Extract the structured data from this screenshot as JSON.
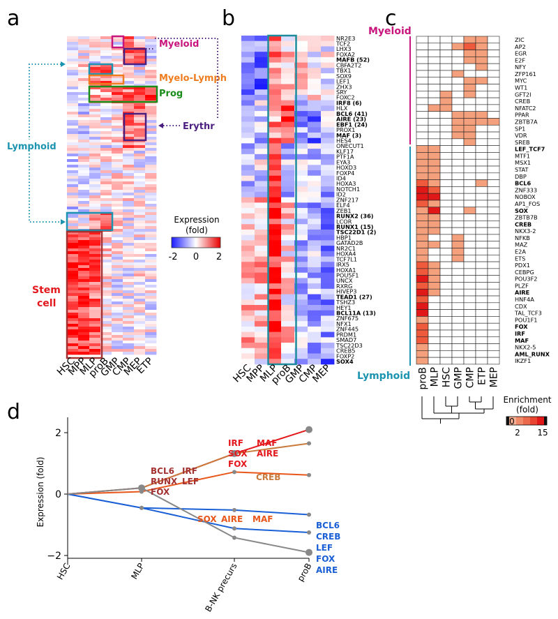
{
  "panels": {
    "a": {
      "letter": "a",
      "cell_types": [
        "HSC",
        "MPP",
        "MLP",
        "proB",
        "GMP",
        "CMP",
        "MEP",
        "ETP"
      ],
      "cluster_labels": {
        "myeloid": "Myeloid",
        "myelo_lymph": "Myelo-Lymph",
        "prog": "Prog",
        "erythr": "Erythr",
        "lymphoid": "Lymphoid",
        "stem_line1": "Stem",
        "stem_line2": "cell"
      },
      "legend": {
        "title_line1": "Expression",
        "title_line2": "(fold)",
        "ticks": [
          "-2",
          "0",
          "2"
        ]
      }
    },
    "b": {
      "letter": "b",
      "cell_types": [
        "HSC",
        "MPP",
        "MLP",
        "proB",
        "GMP",
        "CMP",
        "MEP"
      ],
      "genes": [
        "NR2E3",
        "TCF2",
        "LHX3",
        "FOXA2",
        "MAFB (52)",
        "CBFA2T2",
        "TBX1",
        "SOX9",
        "LEF1",
        "ZHX3",
        "SRY",
        "FOXC2",
        "IRF8 (6)",
        "HLX",
        "BCL6 (41)",
        "AIRE (23)",
        "EBF1 (24)",
        "PROX1",
        "MAF (3)",
        "HES4",
        "ONECUT1",
        "KLF17",
        "PTF1A",
        "EYA3",
        "HOXD3",
        "FOXP4",
        "ID4",
        "HOXA3",
        "NOTCH1",
        "ID2",
        "ZNF217",
        "ELF4",
        "ZEB1",
        "RUNX2 (36)",
        "LCOR",
        "RUNX1 (15)",
        "TSC22D1 (2)",
        "HBP1",
        "GATAD2B",
        "NR2C1",
        "HOXA4",
        "TCF7L1",
        "IRX5",
        "HOXA1",
        "POU5F1",
        "UNCX",
        "RXRG",
        "HIVEP3",
        "TEAD1 (27)",
        "TSHZ3",
        "HEY1",
        "BCL11A (13)",
        "ZNF675",
        "NFX1",
        "ZNF445",
        "PRDM1",
        "SMAD7",
        "TSC22D3",
        "CREB5",
        "FOXP2",
        "SOX4"
      ],
      "bold_genes": [
        "MAFB (52)",
        "IRF8 (6)",
        "BCL6 (41)",
        "AIRE (23)",
        "EBF1 (24)",
        "MAF (3)",
        "RUNX2 (36)",
        "RUNX1 (15)",
        "TSC22D1 (2)",
        "TEAD1 (27)",
        "BCL11A (13)",
        "SOX4"
      ]
    },
    "c": {
      "letter": "c",
      "cell_types": [
        "proB",
        "MLP",
        "HSC",
        "GMP",
        "CMP",
        "ETP",
        "MEP"
      ],
      "myeloid_label": "Myeloid",
      "lymphoid_label": "Lymphoid",
      "motifs": [
        "ZIC",
        "AP2",
        "EGR",
        "E2F",
        "NFY",
        "ZFP161",
        "MYC",
        "WT1",
        "GFT2I",
        "CREB",
        "NFATC2",
        "PPAR",
        "ZBTB7A",
        "SP1",
        "VDR",
        "SREB",
        "LEF_TCF7",
        "MTF1",
        "MSX1",
        "STAT",
        "DBP",
        "BCL6",
        "ZNF333",
        "NOBOX",
        "AP1_FOS",
        "SOX",
        "ZBTB7B",
        "CREB",
        "NKX3-2",
        "NFKB",
        "MAZ",
        "E2A",
        "ETS",
        "PDX1",
        "CEBPG",
        "POU3F2",
        "PLZF",
        "AIRE",
        "HNF4A",
        "CDX",
        "TAL_TCF3",
        "POU1F1",
        "FOX",
        "IRF",
        "MAF",
        "NKX2-5",
        "AML_RUNX",
        "IKZF1"
      ],
      "bold_motifs": [
        16,
        21,
        25,
        27,
        37,
        42,
        43,
        44,
        46
      ],
      "enrichment": [
        [
          0,
          0,
          0,
          0,
          1,
          1,
          0
        ],
        [
          0,
          0,
          0,
          1,
          2,
          1,
          0
        ],
        [
          0,
          0,
          0,
          0,
          1,
          1,
          0
        ],
        [
          0,
          0,
          0,
          0,
          1,
          1,
          0
        ],
        [
          0,
          0,
          0,
          0,
          0,
          1,
          0
        ],
        [
          0,
          0,
          0,
          1,
          0,
          0,
          0
        ],
        [
          0,
          0,
          0,
          0,
          1,
          1,
          0
        ],
        [
          0,
          0,
          0,
          0,
          1,
          0,
          0
        ],
        [
          0,
          0,
          1,
          0,
          1,
          0,
          0
        ],
        [
          0,
          0,
          1,
          0,
          0,
          0,
          0
        ],
        [
          0,
          1,
          1,
          0,
          0,
          0,
          0
        ],
        [
          0,
          0,
          0,
          1,
          1,
          1,
          0
        ],
        [
          0,
          0,
          0,
          1,
          1,
          1,
          1
        ],
        [
          0,
          0,
          0,
          1,
          1,
          0,
          0
        ],
        [
          0,
          0,
          0,
          1,
          1,
          0,
          0
        ],
        [
          0,
          0,
          0,
          0,
          1,
          0,
          0
        ],
        [
          1,
          1,
          0,
          0,
          0,
          0,
          0
        ],
        [
          1,
          1,
          0,
          0,
          0,
          0,
          0
        ],
        [
          1,
          1,
          0,
          0,
          0,
          0,
          0
        ],
        [
          1,
          1,
          0,
          0,
          0,
          0,
          0
        ],
        [
          1,
          1,
          0,
          0,
          0,
          0,
          0
        ],
        [
          2,
          1,
          0,
          0,
          0,
          1,
          0
        ],
        [
          3,
          2,
          0,
          0,
          0,
          0,
          0
        ],
        [
          3,
          3,
          0,
          0,
          0,
          0,
          0
        ],
        [
          2,
          1,
          0,
          0,
          0,
          0,
          0
        ],
        [
          1,
          3,
          0,
          0,
          1,
          0,
          0
        ],
        [
          1,
          1,
          0,
          0,
          0,
          0,
          0
        ],
        [
          1,
          1,
          0,
          0,
          0,
          0,
          0
        ],
        [
          1,
          1,
          0,
          0,
          0,
          0,
          0
        ],
        [
          1,
          0,
          0,
          1,
          0,
          0,
          0
        ],
        [
          1,
          1,
          0,
          1,
          0,
          0,
          0
        ],
        [
          1,
          0,
          0,
          1,
          0,
          0,
          0
        ],
        [
          1,
          0,
          0,
          1,
          0,
          0,
          0
        ],
        [
          2,
          1,
          0,
          0,
          0,
          0,
          0
        ],
        [
          2,
          1,
          0,
          0,
          0,
          0,
          0
        ],
        [
          3,
          1,
          0,
          0,
          0,
          0,
          0
        ],
        [
          2,
          1,
          0,
          0,
          0,
          0,
          0
        ],
        [
          3,
          1,
          0,
          0,
          0,
          0,
          0
        ],
        [
          2,
          0,
          0,
          0,
          0,
          0,
          0
        ],
        [
          3,
          0,
          0,
          0,
          0,
          0,
          0
        ],
        [
          3,
          0,
          0,
          0,
          0,
          0,
          0
        ],
        [
          1,
          0,
          0,
          0,
          0,
          0,
          0
        ],
        [
          2,
          0,
          0,
          0,
          0,
          0,
          0
        ],
        [
          2,
          0,
          0,
          0,
          0,
          0,
          0
        ],
        [
          2,
          0,
          0,
          0,
          0,
          0,
          0
        ],
        [
          1,
          0,
          0,
          0,
          0,
          0,
          0
        ],
        [
          1,
          0,
          0,
          0,
          0,
          0,
          0
        ],
        [
          1,
          0,
          0,
          0,
          0,
          0,
          0
        ]
      ],
      "legend": {
        "title_line1": "Enrichment",
        "title_line2": "(fold)",
        "ticks": [
          "0",
          "2",
          "15"
        ]
      }
    },
    "d": {
      "letter": "d",
      "ylabel": "Expression (fold)"
    }
  },
  "colors": {
    "myeloid": "#c8157e",
    "myelo_lymph": "#ef7d1f",
    "prog": "#1a8c1a",
    "erythr": "#4b1f80",
    "lymphoid": "#1c93b0",
    "stem": "#e3181c",
    "dark_red": "#a33131",
    "red": "#e3181c",
    "orange": "#e8561a",
    "tan": "#c97a3d",
    "blue": "#1a5fd6",
    "grey": "#888888"
  },
  "chart_data": {
    "type": "line",
    "x": [
      "HSC",
      "MLP",
      "B-NK precurs",
      "proB"
    ],
    "ylabel": "Expression (fold)",
    "ylim": [
      -2.3,
      2.5
    ],
    "yticks": [
      -2,
      0,
      2
    ],
    "series": [
      {
        "values": [
          0,
          0.2,
          1.32,
          2.1
        ],
        "color": "#e3181c"
      },
      {
        "values": [
          0,
          0.2,
          1.32,
          1.65
        ],
        "color": "#c97a3d"
      },
      {
        "values": [
          0,
          0.08,
          0.72,
          0.62
        ],
        "color": "#e8561a"
      },
      {
        "values": [
          0,
          -0.45,
          -0.52,
          -0.67
        ],
        "color": "#1a5fd6"
      },
      {
        "values": [
          0,
          -0.45,
          -1.12,
          -1.25
        ],
        "color": "#1a5fd6"
      },
      {
        "values": [
          0,
          0.2,
          -1.42,
          -1.9
        ],
        "color": "#888888"
      }
    ],
    "annotations": [
      {
        "text": "BCL6",
        "color": "#a33131"
      },
      {
        "text": "IRF",
        "color": "#a33131"
      },
      {
        "text": "RUNX",
        "color": "#a33131"
      },
      {
        "text": "LEF",
        "color": "#a33131"
      },
      {
        "text": "FOX",
        "color": "#a33131"
      },
      {
        "text": "IRF",
        "color": "#e3181c"
      },
      {
        "text": "MAF",
        "color": "#e3181c"
      },
      {
        "text": "SOX",
        "color": "#e3181c"
      },
      {
        "text": "AIRE",
        "color": "#e3181c"
      },
      {
        "text": "FOX",
        "color": "#e3181c"
      },
      {
        "text": "CREB",
        "color": "#c97a3d"
      },
      {
        "text": "SOX",
        "color": "#e8561a"
      },
      {
        "text": "AIRE",
        "color": "#e8561a"
      },
      {
        "text": "MAF",
        "color": "#e8561a"
      },
      {
        "text": "BCL6",
        "color": "#1a5fd6"
      },
      {
        "text": "CREB",
        "color": "#1a5fd6"
      },
      {
        "text": "LEF",
        "color": "#1a5fd6"
      },
      {
        "text": "FOX",
        "color": "#1a5fd6"
      },
      {
        "text": "AIRE",
        "color": "#1a5fd6"
      }
    ]
  }
}
